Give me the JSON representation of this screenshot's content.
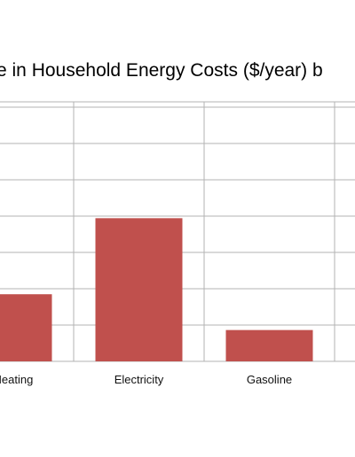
{
  "chart_data": {
    "type": "bar",
    "title": "e in Household Energy Costs ($/year) b",
    "categories": [
      "e Heating",
      "Electricity",
      "Gasoline"
    ],
    "values": [
      15,
      32,
      7
    ],
    "ylim": [
      0,
      58
    ],
    "grid": true,
    "colors": {
      "bar": "#c0504d",
      "grid": "#b3b3b3"
    }
  }
}
